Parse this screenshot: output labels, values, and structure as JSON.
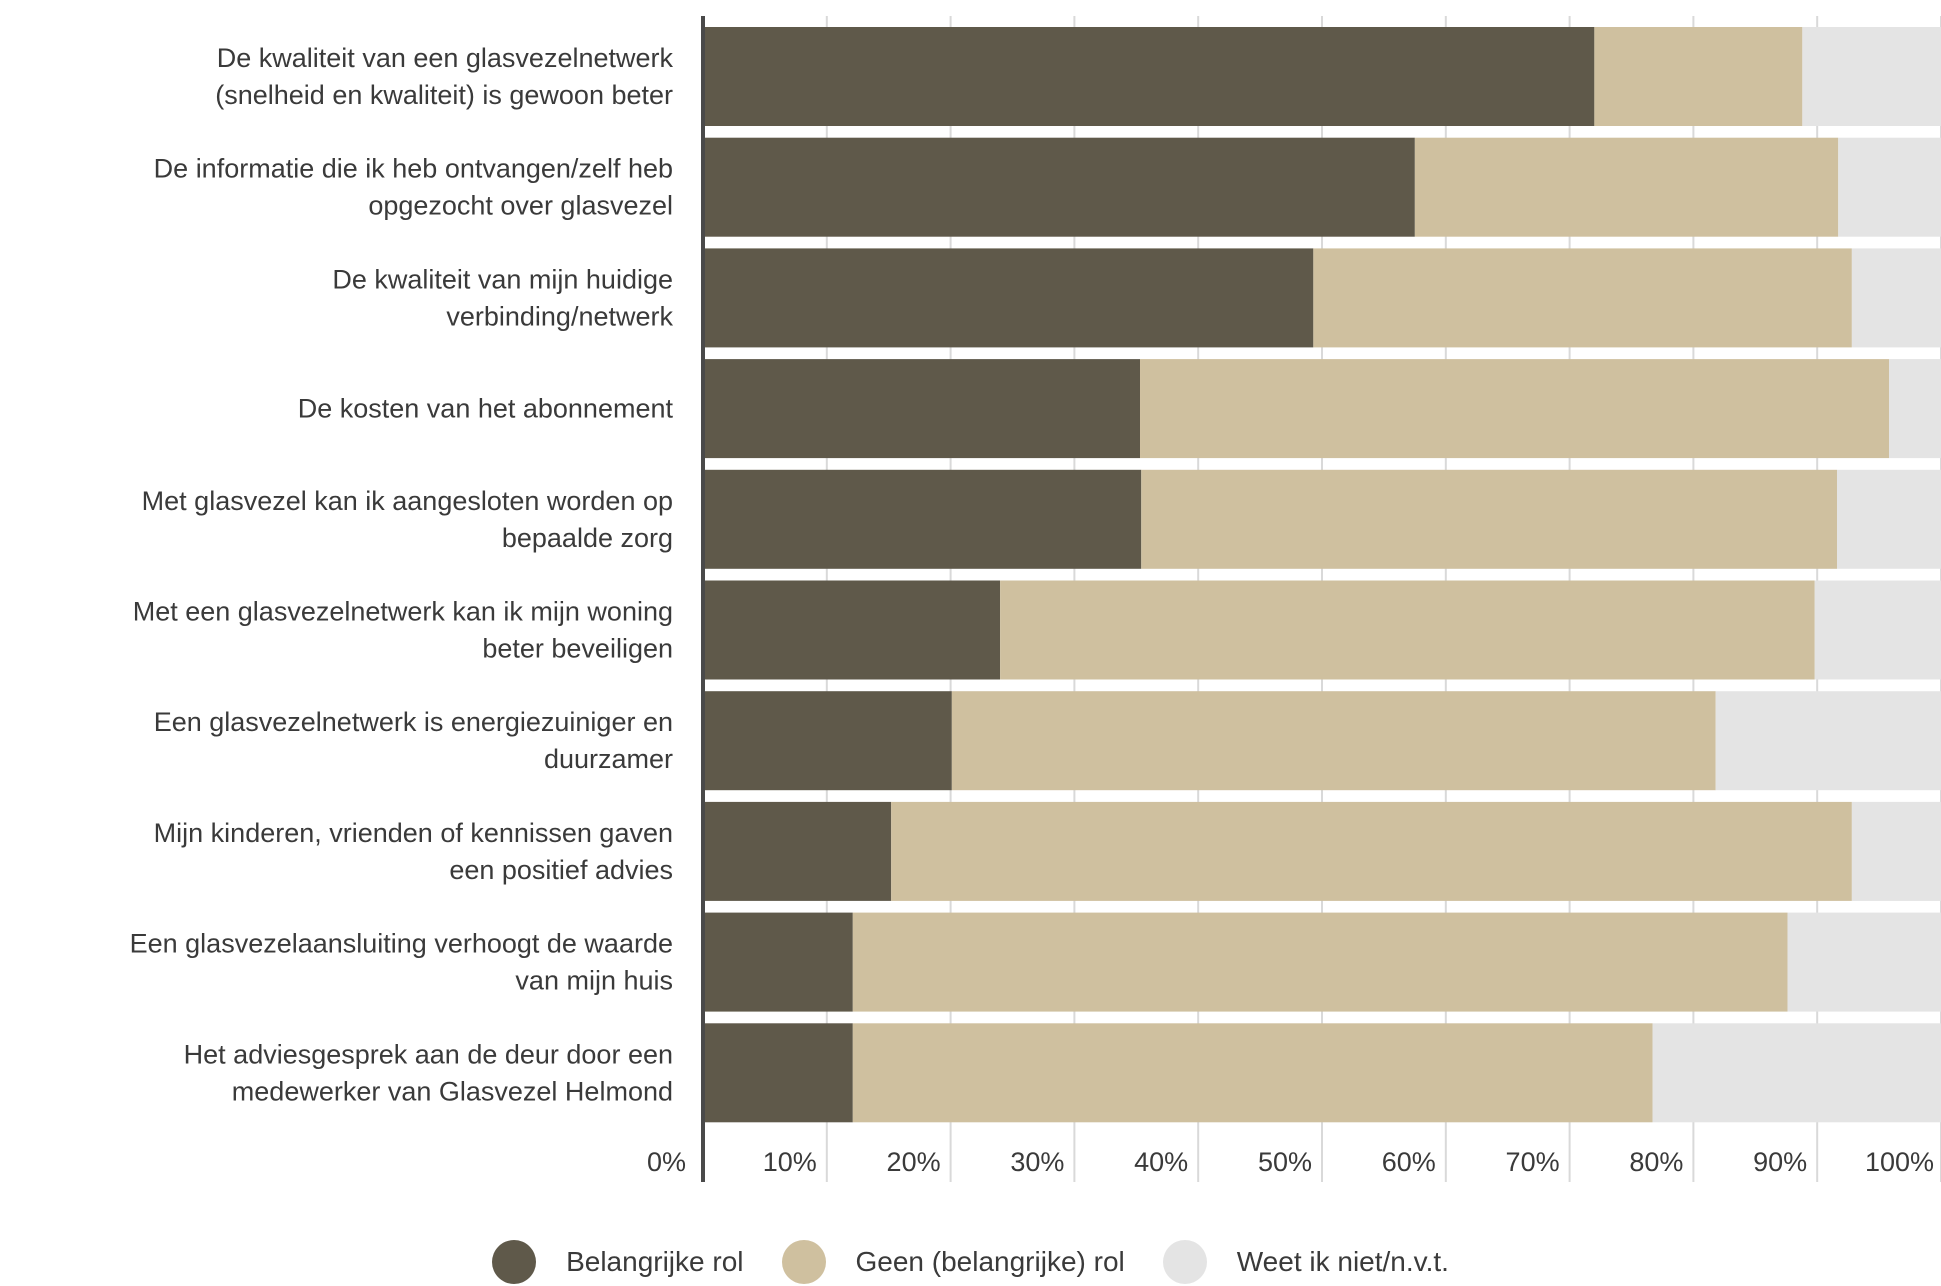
{
  "chart_data": {
    "type": "bar",
    "orientation": "horizontal",
    "stacked": true,
    "title": "",
    "xlabel": "",
    "ylabel": "",
    "xlim": [
      0,
      100
    ],
    "x_ticks": [
      "0%",
      "10%",
      "20%",
      "30%",
      "40%",
      "50%",
      "60%",
      "70%",
      "80%",
      "90%",
      "100%"
    ],
    "grid": true,
    "legend_position": "bottom",
    "categories": [
      [
        "De kwaliteit van een glasvezelnetwerk",
        "(snelheid en kwaliteit) is gewoon beter"
      ],
      [
        "De informatie die ik heb ontvangen/zelf heb",
        "opgezocht over glasvezel"
      ],
      [
        "De kwaliteit van mijn huidige",
        "verbinding/netwerk"
      ],
      [
        "De kosten van het abonnement"
      ],
      [
        "Met glasvezel kan ik aangesloten worden op",
        "bepaalde zorg"
      ],
      [
        "Met een glasvezelnetwerk kan ik mijn woning",
        "beter beveiligen"
      ],
      [
        "Een glasvezelnetwerk is energiezuiniger en",
        "duurzamer"
      ],
      [
        "Mijn kinderen, vrienden of kennissen gaven",
        "een positief advies"
      ],
      [
        "Een glasvezelaansluiting verhoogt de waarde",
        "van mijn huis"
      ],
      [
        "Het adviesgesprek aan de deur door een",
        "medewerker van Glasvezel Helmond"
      ]
    ],
    "series": [
      {
        "name": "Belangrijke rol",
        "color": "#5f594a",
        "values": [
          72,
          57.5,
          49.3,
          35.3,
          35.4,
          24,
          20.1,
          15.2,
          12.1,
          12.1
        ]
      },
      {
        "name": "Geen (belangrijke) rol",
        "color": "#cfc09f",
        "values": [
          16.8,
          34.2,
          43.5,
          60.5,
          56.2,
          65.8,
          61.7,
          77.6,
          75.5,
          64.6
        ]
      },
      {
        "name": "Weet ik niet/n.v.t.",
        "color": "#e4e4e4",
        "values": [
          11.2,
          8.3,
          7.2,
          4.2,
          8.4,
          10.2,
          18.2,
          7.2,
          12.4,
          23.3
        ]
      }
    ]
  },
  "legend": {
    "items": [
      {
        "label": "Belangrijke rol",
        "color": "#5f594a"
      },
      {
        "label": "Geen (belangrijke) rol",
        "color": "#cfc09f"
      },
      {
        "label": "Weet ik niet/n.v.t.",
        "color": "#e4e4e4"
      }
    ]
  }
}
